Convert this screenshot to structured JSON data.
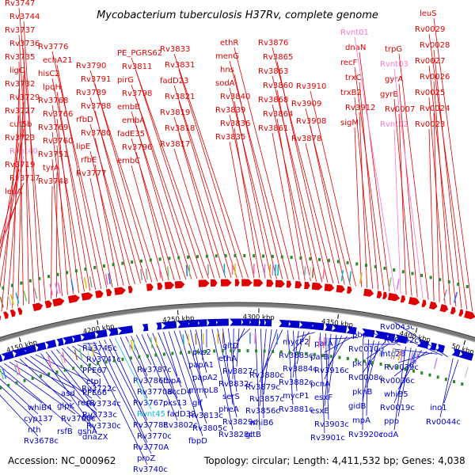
{
  "title": "Mycobacterium tuberculosis H37Rv, complete genome",
  "accession": "Accession: NC_000962",
  "summary": "Topology: circular; Length: 4,411,532 bp; Genes: 4,038",
  "colors": {
    "forward": "#e00000",
    "reverse": "#0000cc",
    "rna": "#ff77cc",
    "highlight": "#00bbee",
    "backbone": "#7a7a7a",
    "marker": "#2a8a2a"
  },
  "ticks": [
    "4150 kbp",
    "4200 kbp",
    "4250 kbp",
    "4300 kbp",
    "4350 kbp",
    "4400 kbp",
    "50 kbp"
  ],
  "forward_genes": [
    {
      "name": "leuA",
      "kind": "gene"
    },
    {
      "name": "Rv3717",
      "kind": "gene"
    },
    {
      "name": "Rv3719",
      "kind": "gene"
    },
    {
      "name": "Rvnt40",
      "kind": "rna"
    },
    {
      "name": "Rv3723",
      "kind": "gene"
    },
    {
      "name": "cut5b",
      "kind": "gene"
    },
    {
      "name": "Rv3727",
      "kind": "gene"
    },
    {
      "name": "Rv3729",
      "kind": "gene"
    },
    {
      "name": "Rv3732",
      "kind": "gene"
    },
    {
      "name": "ligC",
      "kind": "gene"
    },
    {
      "name": "Rv3735",
      "kind": "gene"
    },
    {
      "name": "Rv3736",
      "kind": "gene"
    },
    {
      "name": "Rv3737",
      "kind": "gene"
    },
    {
      "name": "Rv3744",
      "kind": "gene"
    },
    {
      "name": "Rv3747",
      "kind": "gene"
    },
    {
      "name": "Rv3748",
      "kind": "gene"
    },
    {
      "name": "tyrA",
      "kind": "gene"
    },
    {
      "name": "Rv3751",
      "kind": "gene"
    },
    {
      "name": "Rv3760",
      "kind": "gene"
    },
    {
      "name": "Rv3769",
      "kind": "gene"
    },
    {
      "name": "Rv3766",
      "kind": "gene"
    },
    {
      "name": "Rv3768",
      "kind": "gene"
    },
    {
      "name": "lpqH",
      "kind": "gene"
    },
    {
      "name": "hisC2",
      "kind": "gene"
    },
    {
      "name": "echA21",
      "kind": "gene"
    },
    {
      "name": "Rv3776",
      "kind": "gene"
    },
    {
      "name": "Rv3777",
      "kind": "gene"
    },
    {
      "name": "rfbE",
      "kind": "gene"
    },
    {
      "name": "lipE",
      "kind": "gene"
    },
    {
      "name": "Rv3780",
      "kind": "gene"
    },
    {
      "name": "rfbD",
      "kind": "gene"
    },
    {
      "name": "Rv3788",
      "kind": "gene"
    },
    {
      "name": "Rv3789",
      "kind": "gene"
    },
    {
      "name": "Rv3791",
      "kind": "gene"
    },
    {
      "name": "Rv3790",
      "kind": "gene"
    },
    {
      "name": "embC",
      "kind": "gene"
    },
    {
      "name": "Rv3796",
      "kind": "gene"
    },
    {
      "name": "fadE35",
      "kind": "gene"
    },
    {
      "name": "embA",
      "kind": "gene"
    },
    {
      "name": "embB",
      "kind": "gene"
    },
    {
      "name": "Rv3798",
      "kind": "gene"
    },
    {
      "name": "pirG",
      "kind": "gene"
    },
    {
      "name": "Rv3811",
      "kind": "gene"
    },
    {
      "name": "PE_PGRS62",
      "kind": "gene"
    },
    {
      "name": "Rv3817",
      "kind": "gene"
    },
    {
      "name": "Rv3818",
      "kind": "gene"
    },
    {
      "name": "Rv3819",
      "kind": "gene"
    },
    {
      "name": "Rv3821",
      "kind": "gene"
    },
    {
      "name": "fadD23",
      "kind": "gene"
    },
    {
      "name": "Rv3831",
      "kind": "gene"
    },
    {
      "name": "Rv3833",
      "kind": "gene"
    },
    {
      "name": "Rv3835",
      "kind": "gene"
    },
    {
      "name": "Rv3836",
      "kind": "gene"
    },
    {
      "name": "Rv3839",
      "kind": "gene"
    },
    {
      "name": "Rv3840",
      "kind": "gene"
    },
    {
      "name": "sodA",
      "kind": "gene"
    },
    {
      "name": "hns",
      "kind": "gene"
    },
    {
      "name": "menG",
      "kind": "gene"
    },
    {
      "name": "ethR",
      "kind": "gene"
    },
    {
      "name": "Rv3861",
      "kind": "gene"
    },
    {
      "name": "Rv3864",
      "kind": "gene"
    },
    {
      "name": "Rv3868",
      "kind": "gene"
    },
    {
      "name": "Rv3860",
      "kind": "gene"
    },
    {
      "name": "Rv3863",
      "kind": "gene"
    },
    {
      "name": "Rv3865",
      "kind": "gene"
    },
    {
      "name": "Rv3876",
      "kind": "gene"
    },
    {
      "name": "Rv3878",
      "kind": "gene"
    },
    {
      "name": "Rv3908",
      "kind": "gene"
    },
    {
      "name": "Rv3909",
      "kind": "gene"
    },
    {
      "name": "Rv3910",
      "kind": "gene"
    },
    {
      "name": "sigM",
      "kind": "gene"
    },
    {
      "name": "Rv3912",
      "kind": "gene"
    },
    {
      "name": "trxB2",
      "kind": "gene"
    },
    {
      "name": "trxC",
      "kind": "gene"
    },
    {
      "name": "recF",
      "kind": "gene"
    },
    {
      "name": "dnaN",
      "kind": "gene"
    },
    {
      "name": "Rvnt01",
      "kind": "rna"
    },
    {
      "name": "Rvnt02",
      "kind": "rna"
    },
    {
      "name": "Rv0007",
      "kind": "gene"
    },
    {
      "name": "gyrB",
      "kind": "gene"
    },
    {
      "name": "gyrA",
      "kind": "gene"
    },
    {
      "name": "Rvnt03",
      "kind": "rna"
    },
    {
      "name": "trpG",
      "kind": "gene"
    },
    {
      "name": "Rv0023",
      "kind": "gene"
    },
    {
      "name": "Rv0024",
      "kind": "gene"
    },
    {
      "name": "Rv0025",
      "kind": "gene"
    },
    {
      "name": "Rv0026",
      "kind": "gene"
    },
    {
      "name": "Rv0027",
      "kind": "gene"
    },
    {
      "name": "Rv0028",
      "kind": "gene"
    },
    {
      "name": "Rv0029",
      "kind": "gene"
    },
    {
      "name": "leuS",
      "kind": "gene"
    }
  ],
  "reverse_genes": [
    {
      "name": "Rv3678c",
      "kind": "gene"
    },
    {
      "name": "nth",
      "kind": "gene"
    },
    {
      "name": "cyp137",
      "kind": "gene"
    },
    {
      "name": "whiB4",
      "kind": "gene"
    },
    {
      "name": "rsfB",
      "kind": "gene"
    },
    {
      "name": "Rv3700c",
      "kind": "gene"
    },
    {
      "name": "glpK",
      "kind": "gene"
    },
    {
      "name": "asd",
      "kind": "gene"
    },
    {
      "name": "gshA",
      "kind": "gene"
    },
    {
      "name": "ask",
      "kind": "gene"
    },
    {
      "name": "recR",
      "kind": "gene"
    },
    {
      "name": "Rv3722c",
      "kind": "gene"
    },
    {
      "name": "dnaZX",
      "kind": "gene"
    },
    {
      "name": "Rv3730c",
      "kind": "gene"
    },
    {
      "name": "Rv3733c",
      "kind": "gene"
    },
    {
      "name": "Rv3734c",
      "kind": "gene"
    },
    {
      "name": "PPE66",
      "kind": "gene"
    },
    {
      "name": "ctpJ",
      "kind": "gene"
    },
    {
      "name": "PPE67",
      "kind": "gene"
    },
    {
      "name": "Rv3741c",
      "kind": "gene"
    },
    {
      "name": "Rv3745c",
      "kind": "gene"
    },
    {
      "name": "Rv3740c",
      "kind": "gene"
    },
    {
      "name": "proZ",
      "kind": "gene"
    },
    {
      "name": "Rv3770A",
      "kind": "gene"
    },
    {
      "name": "Rv3770c",
      "kind": "gene"
    },
    {
      "name": "Rv3778c",
      "kind": "gene"
    },
    {
      "name": "Rvnt45",
      "kind": "highlight"
    },
    {
      "name": "Rv3767c",
      "kind": "gene"
    },
    {
      "name": "Rv3770B",
      "kind": "gene"
    },
    {
      "name": "Rv3786c",
      "kind": "gene"
    },
    {
      "name": "Rv3787c",
      "kind": "gene"
    },
    {
      "name": "Rv3802c",
      "kind": "gene"
    },
    {
      "name": "fadD32",
      "kind": "gene"
    },
    {
      "name": "pks13",
      "kind": "gene"
    },
    {
      "name": "accD4",
      "kind": "gene"
    },
    {
      "name": "fbpA",
      "kind": "gene"
    },
    {
      "name": "fbpD",
      "kind": "gene"
    },
    {
      "name": "Rv3805c",
      "kind": "gene"
    },
    {
      "name": "Rv3813c",
      "kind": "gene"
    },
    {
      "name": "glf",
      "kind": "gene"
    },
    {
      "name": "mmpL8",
      "kind": "gene"
    },
    {
      "name": "papA2",
      "kind": "gene"
    },
    {
      "name": "papA1",
      "kind": "gene"
    },
    {
      "name": "pks2",
      "kind": "gene"
    },
    {
      "name": "Rv3828c",
      "kind": "gene"
    },
    {
      "name": "Rv3829c",
      "kind": "gene"
    },
    {
      "name": "pheA",
      "kind": "gene"
    },
    {
      "name": "serS",
      "kind": "gene"
    },
    {
      "name": "Rv3832c",
      "kind": "gene"
    },
    {
      "name": "Rv3827c",
      "kind": "gene"
    },
    {
      "name": "ethA",
      "kind": "gene"
    },
    {
      "name": "gltD",
      "kind": "gene"
    },
    {
      "name": "gltB",
      "kind": "gene"
    },
    {
      "name": "whiB6",
      "kind": "gene"
    },
    {
      "name": "Rv3856c",
      "kind": "gene"
    },
    {
      "name": "Rv3857c",
      "kind": "gene"
    },
    {
      "name": "Rv3879c",
      "kind": "gene"
    },
    {
      "name": "Rv3880c",
      "kind": "gene"
    },
    {
      "name": "Rv3881c",
      "kind": "gene"
    },
    {
      "name": "mycP1",
      "kind": "gene"
    },
    {
      "name": "Rv3882c",
      "kind": "gene"
    },
    {
      "name": "Rv3884c",
      "kind": "gene"
    },
    {
      "name": "Rv3885c",
      "kind": "gene"
    },
    {
      "name": "mycP2",
      "kind": "gene"
    },
    {
      "name": "Rv3901c",
      "kind": "gene"
    },
    {
      "name": "Rv3903c",
      "kind": "gene"
    },
    {
      "name": "esxE",
      "kind": "gene"
    },
    {
      "name": "esxF",
      "kind": "gene"
    },
    {
      "name": "pcnA",
      "kind": "gene"
    },
    {
      "name": "Rv3916c",
      "kind": "gene"
    },
    {
      "name": "parB",
      "kind": "gene"
    },
    {
      "name": "parA",
      "kind": "gene"
    },
    {
      "name": "Rv3920c",
      "kind": "gene"
    },
    {
      "name": "mpA",
      "kind": "gene"
    },
    {
      "name": "gidB",
      "kind": "gene"
    },
    {
      "name": "pknB",
      "kind": "gene"
    },
    {
      "name": "Rv0008c",
      "kind": "gene"
    },
    {
      "name": "pknA",
      "kind": "gene"
    },
    {
      "name": "Rv0010c",
      "kind": "gene"
    },
    {
      "name": "pbpA",
      "kind": "gene"
    },
    {
      "name": "rodA",
      "kind": "gene"
    },
    {
      "name": "ppp",
      "kind": "gene"
    },
    {
      "name": "Rv0019c",
      "kind": "gene"
    },
    {
      "name": "whiB5",
      "kind": "gene"
    },
    {
      "name": "Rv0036c",
      "kind": "gene"
    },
    {
      "name": "Rv0039c",
      "kind": "gene"
    },
    {
      "name": "mtc28",
      "kind": "gene"
    },
    {
      "name": "Rv0042c",
      "kind": "gene"
    },
    {
      "name": "Rv0043c",
      "kind": "gene"
    },
    {
      "name": "Rv0044c",
      "kind": "gene"
    },
    {
      "name": "ino1",
      "kind": "gene"
    }
  ]
}
